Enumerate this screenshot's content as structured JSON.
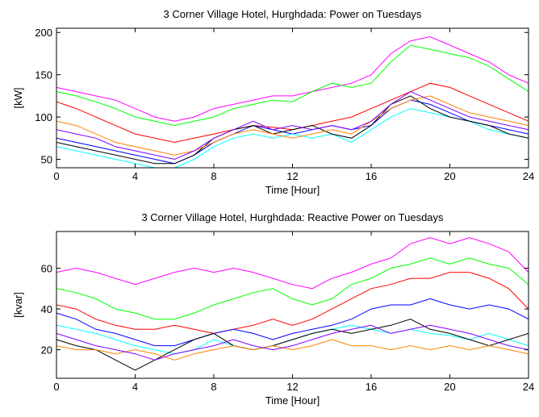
{
  "chart_data": [
    {
      "type": "line",
      "title": "3 Corner Village Hotel, Hurghdada: Power on Tuesdays",
      "x_label": "Time [Hour]",
      "y_label": "[kW]",
      "x": [
        0,
        1,
        2,
        3,
        4,
        5,
        6,
        7,
        8,
        9,
        10,
        11,
        12,
        13,
        14,
        15,
        16,
        17,
        18,
        19,
        20,
        21,
        22,
        23,
        24
      ],
      "xlim": [
        0,
        24
      ],
      "xticks": [
        0,
        4,
        8,
        12,
        16,
        20,
        24
      ],
      "ylim": [
        40,
        205
      ],
      "yticks": [
        50,
        100,
        150,
        200
      ],
      "series": [
        {
          "color": "#ff00ff",
          "values": [
            135,
            130,
            125,
            120,
            110,
            100,
            95,
            100,
            110,
            115,
            120,
            125,
            125,
            130,
            135,
            140,
            150,
            175,
            190,
            195,
            185,
            175,
            165,
            150,
            140
          ]
        },
        {
          "color": "#00ff00",
          "values": [
            130,
            125,
            118,
            110,
            100,
            95,
            90,
            95,
            100,
            110,
            115,
            120,
            118,
            130,
            140,
            135,
            140,
            165,
            185,
            180,
            175,
            170,
            160,
            145,
            130
          ]
        },
        {
          "color": "#ff0000",
          "values": [
            118,
            110,
            100,
            90,
            80,
            75,
            70,
            75,
            80,
            85,
            90,
            88,
            85,
            90,
            95,
            100,
            110,
            120,
            130,
            140,
            135,
            125,
            115,
            105,
            95
          ]
        },
        {
          "color": "#0000ff",
          "values": [
            75,
            70,
            65,
            60,
            55,
            50,
            45,
            55,
            70,
            80,
            90,
            85,
            80,
            85,
            90,
            85,
            90,
            110,
            120,
            115,
            105,
            95,
            90,
            85,
            80
          ]
        },
        {
          "color": "#00ffff",
          "values": [
            65,
            60,
            55,
            50,
            45,
            40,
            40,
            50,
            65,
            75,
            80,
            75,
            80,
            75,
            80,
            70,
            85,
            100,
            110,
            105,
            100,
            95,
            85,
            80,
            75
          ]
        },
        {
          "color": "#000000",
          "values": [
            70,
            65,
            60,
            55,
            50,
            45,
            45,
            55,
            75,
            85,
            90,
            80,
            85,
            90,
            80,
            75,
            90,
            115,
            125,
            110,
            100,
            95,
            90,
            80,
            75
          ]
        },
        {
          "color": "#ff8000",
          "values": [
            95,
            90,
            80,
            70,
            65,
            60,
            55,
            60,
            70,
            80,
            85,
            80,
            75,
            80,
            85,
            80,
            95,
            110,
            120,
            125,
            115,
            105,
            100,
            95,
            90
          ]
        },
        {
          "color": "#8000ff",
          "values": [
            85,
            80,
            75,
            65,
            60,
            55,
            50,
            60,
            75,
            85,
            95,
            85,
            90,
            85,
            90,
            85,
            95,
            115,
            130,
            120,
            110,
            100,
            95,
            90,
            85
          ]
        }
      ]
    },
    {
      "type": "line",
      "title": "3 Corner Village Hotel, Hurghdada: Reactive Power on Tuesdays",
      "x_label": "Time [Hour]",
      "y_label": "[kvar]",
      "x": [
        0,
        1,
        2,
        3,
        4,
        5,
        6,
        7,
        8,
        9,
        10,
        11,
        12,
        13,
        14,
        15,
        16,
        17,
        18,
        19,
        20,
        21,
        22,
        23,
        24
      ],
      "xlim": [
        0,
        24
      ],
      "xticks": [
        0,
        4,
        8,
        12,
        16,
        20,
        24
      ],
      "ylim": [
        6,
        78
      ],
      "yticks": [
        20,
        40,
        60
      ],
      "series": [
        {
          "color": "#ff00ff",
          "values": [
            58,
            60,
            58,
            55,
            52,
            55,
            58,
            60,
            58,
            60,
            58,
            55,
            52,
            50,
            55,
            58,
            62,
            65,
            72,
            75,
            72,
            75,
            72,
            68,
            58
          ]
        },
        {
          "color": "#00ff00",
          "values": [
            50,
            48,
            45,
            40,
            38,
            35,
            35,
            38,
            42,
            45,
            48,
            50,
            45,
            42,
            45,
            52,
            55,
            60,
            62,
            65,
            62,
            65,
            62,
            60,
            52
          ]
        },
        {
          "color": "#ff0000",
          "values": [
            42,
            40,
            35,
            32,
            30,
            30,
            32,
            30,
            28,
            30,
            32,
            35,
            32,
            35,
            40,
            45,
            50,
            52,
            55,
            55,
            58,
            58,
            55,
            50,
            40
          ]
        },
        {
          "color": "#0000ff",
          "values": [
            38,
            35,
            30,
            28,
            25,
            22,
            22,
            25,
            28,
            30,
            28,
            25,
            28,
            30,
            32,
            35,
            40,
            42,
            42,
            45,
            42,
            40,
            42,
            40,
            35
          ]
        },
        {
          "color": "#00ffff",
          "values": [
            32,
            30,
            28,
            25,
            22,
            20,
            18,
            20,
            25,
            22,
            20,
            22,
            25,
            28,
            30,
            32,
            30,
            28,
            30,
            28,
            27,
            25,
            28,
            25,
            22
          ]
        },
        {
          "color": "#000000",
          "values": [
            25,
            22,
            20,
            15,
            10,
            15,
            20,
            25,
            28,
            22,
            20,
            22,
            25,
            28,
            30,
            28,
            30,
            32,
            35,
            30,
            28,
            25,
            22,
            25,
            28
          ]
        },
        {
          "color": "#ff8000",
          "values": [
            22,
            20,
            20,
            18,
            20,
            18,
            15,
            18,
            20,
            22,
            20,
            22,
            20,
            22,
            25,
            22,
            22,
            20,
            22,
            20,
            22,
            20,
            22,
            20,
            18
          ]
        },
        {
          "color": "#8000ff",
          "values": [
            28,
            25,
            22,
            20,
            18,
            15,
            18,
            20,
            22,
            25,
            22,
            20,
            22,
            25,
            28,
            30,
            32,
            28,
            30,
            32,
            30,
            28,
            25,
            22,
            20
          ]
        }
      ]
    }
  ]
}
